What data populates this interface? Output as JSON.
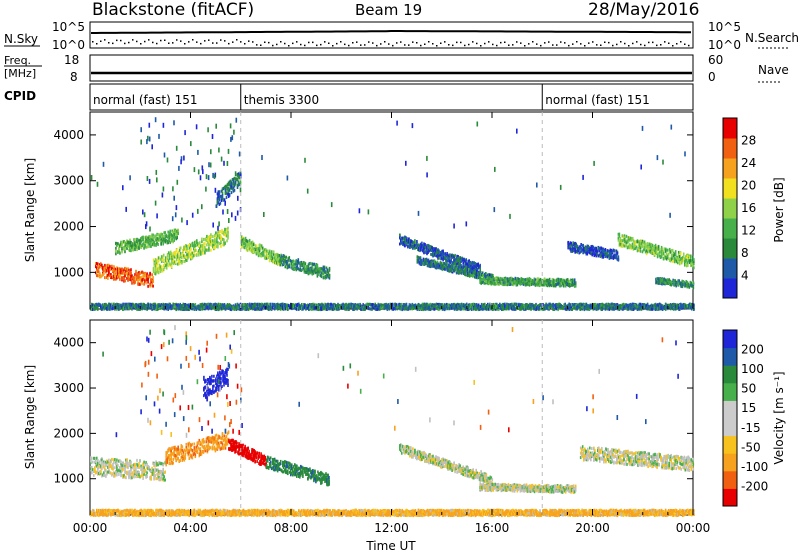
{
  "header": {
    "radar": "Blackstone (fitACF)",
    "beam": "Beam 19",
    "date": "28/May/2016"
  },
  "sky_panel": {
    "left_label": "N.Sky",
    "right_label": "N.Search",
    "left_ticks": [
      "10^5",
      "10^0"
    ],
    "right_ticks": [
      "10^5",
      "10^0"
    ]
  },
  "freq_panel": {
    "left_label_top": "Freq.",
    "left_label_bottom": "[MHz]",
    "right_label": "Nave",
    "left_ticks": [
      "18",
      "8"
    ],
    "right_ticks": [
      "60",
      "0"
    ]
  },
  "cpid_panel": {
    "label": "CPID",
    "segments": [
      {
        "label": "normal (fast) 151",
        "start_hour": 0,
        "end_hour": 6
      },
      {
        "label": "themis 3300",
        "start_hour": 6,
        "end_hour": 18
      },
      {
        "label": "normal (fast) 151",
        "start_hour": 18,
        "end_hour": 24
      }
    ]
  },
  "colors": {
    "power_scale": [
      "#1e26d8",
      "#1e5aa8",
      "#2a8a3c",
      "#48b04a",
      "#8fd24a",
      "#f0e020",
      "#f7a21e",
      "#f06010",
      "#e80000"
    ],
    "velocity_scale": [
      "#1e26d8",
      "#1e5aa8",
      "#2a8a3c",
      "#48b04a",
      "#cccccc",
      "#cccccc",
      "#f7c21e",
      "#f7a21e",
      "#f06010",
      "#e80000"
    ],
    "ground_scatter": "#c0c0c0"
  },
  "chart_data": [
    {
      "type": "heatmap",
      "panel": "power",
      "xlabel": "Time UT",
      "ylabel": "Slant Range [km]",
      "xlim_hours": [
        0,
        24
      ],
      "ylim_km": [
        200,
        4500
      ],
      "y_ticks": [
        "1000",
        "2000",
        "3000",
        "4000"
      ],
      "colorbar": {
        "label": "Power [dB]",
        "ticks": [
          "4",
          "8",
          "12",
          "16",
          "20",
          "24",
          "28"
        ],
        "range": [
          0,
          32
        ]
      },
      "bands": [
        {
          "t0": 0.2,
          "t1": 2.5,
          "r0": 1100,
          "r1": 850,
          "width": 300,
          "level": 30
        },
        {
          "t0": 2.5,
          "t1": 5.5,
          "r0": 1150,
          "r1": 1850,
          "width": 350,
          "level": 18
        },
        {
          "t0": 1.0,
          "t1": 3.5,
          "r0": 1550,
          "r1": 1850,
          "width": 250,
          "level": 14
        },
        {
          "t0": 5.0,
          "t1": 6.0,
          "r0": 2600,
          "r1": 3100,
          "width": 300,
          "level": 8
        },
        {
          "t0": 6.0,
          "t1": 7.5,
          "r0": 1700,
          "r1": 1300,
          "width": 250,
          "level": 16
        },
        {
          "t0": 7.5,
          "t1": 9.5,
          "r0": 1300,
          "r1": 1000,
          "width": 250,
          "level": 10
        },
        {
          "t0": 12.3,
          "t1": 15.5,
          "r0": 1750,
          "r1": 1100,
          "width": 200,
          "level": 6
        },
        {
          "t0": 13.0,
          "t1": 16.0,
          "r0": 1300,
          "r1": 900,
          "width": 150,
          "level": 8
        },
        {
          "t0": 15.5,
          "t1": 19.3,
          "r0": 850,
          "r1": 800,
          "width": 150,
          "level": 12
        },
        {
          "t0": 21.0,
          "t1": 24.0,
          "r0": 1750,
          "r1": 1250,
          "width": 250,
          "level": 16
        },
        {
          "t0": 19.0,
          "t1": 21.0,
          "r0": 1600,
          "r1": 1400,
          "width": 200,
          "level": 5
        },
        {
          "t0": 22.5,
          "t1": 24.0,
          "r0": 850,
          "r1": 750,
          "width": 120,
          "level": 10
        },
        {
          "t0": 0.0,
          "t1": 24.0,
          "r0": 280,
          "r1": 280,
          "width": 120,
          "level": 8
        }
      ]
    },
    {
      "type": "heatmap",
      "panel": "velocity",
      "xlabel": "Time UT",
      "ylabel": "Slant Range [km]",
      "xlim_hours": [
        0,
        24
      ],
      "ylim_km": [
        200,
        4500
      ],
      "y_ticks": [
        "1000",
        "2000",
        "3000",
        "4000"
      ],
      "x_ticks": [
        "00:00",
        "04:00",
        "08:00",
        "12:00",
        "16:00",
        "20:00",
        "00:00"
      ],
      "colorbar": {
        "label": "Velocity [m s⁻¹]",
        "ticks": [
          "200",
          "100",
          "50",
          "15",
          "-15",
          "-50",
          "-100",
          "-200"
        ],
        "range": [
          -250,
          250
        ]
      },
      "bands": [
        {
          "t0": 0.0,
          "t1": 3.0,
          "r0": 1300,
          "r1": 1200,
          "width": 400,
          "level": 0
        },
        {
          "t0": 3.0,
          "t1": 5.5,
          "r0": 1500,
          "r1": 1900,
          "width": 350,
          "level": -60
        },
        {
          "t0": 4.5,
          "t1": 5.5,
          "r0": 3000,
          "r1": 3300,
          "width": 400,
          "level": 220
        },
        {
          "t0": 5.5,
          "t1": 7.0,
          "r0": 1800,
          "r1": 1400,
          "width": 250,
          "level": -220
        },
        {
          "t0": 7.0,
          "t1": 9.5,
          "r0": 1400,
          "r1": 1000,
          "width": 250,
          "level": 60
        },
        {
          "t0": 12.3,
          "t1": 16.0,
          "r0": 1700,
          "r1": 1000,
          "width": 200,
          "level": 0
        },
        {
          "t0": 15.5,
          "t1": 19.3,
          "r0": 850,
          "r1": 800,
          "width": 150,
          "level": 0
        },
        {
          "t0": 19.5,
          "t1": 24.0,
          "r0": 1600,
          "r1": 1350,
          "width": 300,
          "level": 0
        },
        {
          "t0": 0.0,
          "t1": 24.0,
          "r0": 280,
          "r1": 280,
          "width": 120,
          "level": -40
        }
      ]
    }
  ]
}
